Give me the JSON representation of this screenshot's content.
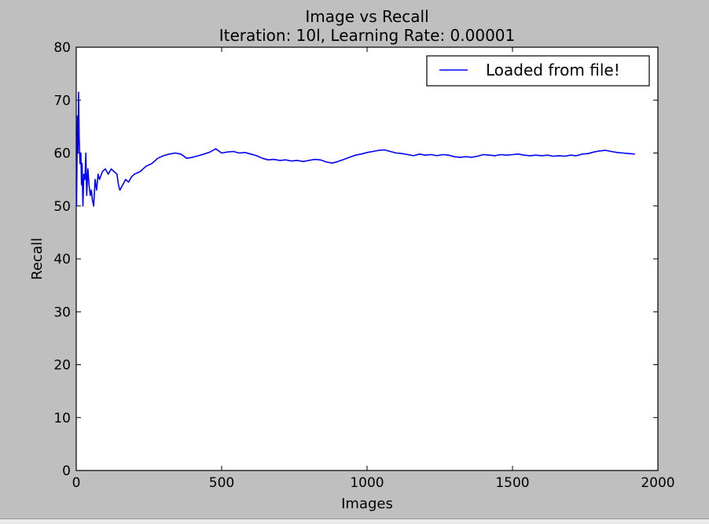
{
  "chart_data": {
    "type": "line",
    "title": "Image vs Recall",
    "subtitle": "Iteration: 10l, Learning Rate: 0.00001",
    "xlabel": "Images",
    "ylabel": "Recall",
    "xlim": [
      0,
      2000
    ],
    "ylim": [
      0,
      80
    ],
    "xticks": [
      0,
      500,
      1000,
      1500,
      2000
    ],
    "yticks": [
      0,
      10,
      20,
      30,
      40,
      50,
      60,
      70,
      80
    ],
    "grid": false,
    "legend_position": "top-right",
    "series": [
      {
        "name": "Loaded from file!",
        "color": "#0000ff",
        "points": [
          [
            1,
            50
          ],
          [
            4,
            67
          ],
          [
            6,
            60
          ],
          [
            8,
            71.5
          ],
          [
            10,
            63
          ],
          [
            13,
            58
          ],
          [
            16,
            60
          ],
          [
            18,
            54
          ],
          [
            20,
            58
          ],
          [
            23,
            50
          ],
          [
            26,
            56
          ],
          [
            30,
            55
          ],
          [
            33,
            60
          ],
          [
            36,
            52
          ],
          [
            40,
            57
          ],
          [
            44,
            54
          ],
          [
            48,
            52
          ],
          [
            52,
            53
          ],
          [
            56,
            51
          ],
          [
            60,
            50
          ],
          [
            65,
            55
          ],
          [
            70,
            53
          ],
          [
            75,
            56
          ],
          [
            80,
            55
          ],
          [
            90,
            56.5
          ],
          [
            100,
            57
          ],
          [
            110,
            56
          ],
          [
            120,
            57
          ],
          [
            130,
            56.5
          ],
          [
            140,
            56
          ],
          [
            145,
            54
          ],
          [
            150,
            53
          ],
          [
            160,
            54
          ],
          [
            170,
            55
          ],
          [
            180,
            54.5
          ],
          [
            190,
            55.5
          ],
          [
            200,
            56
          ],
          [
            220,
            56.5
          ],
          [
            240,
            57.5
          ],
          [
            260,
            58
          ],
          [
            280,
            59
          ],
          [
            300,
            59.5
          ],
          [
            320,
            59.8
          ],
          [
            340,
            60
          ],
          [
            360,
            59.8
          ],
          [
            380,
            59
          ],
          [
            400,
            59.2
          ],
          [
            420,
            59.5
          ],
          [
            440,
            59.8
          ],
          [
            460,
            60.2
          ],
          [
            480,
            60.8
          ],
          [
            500,
            60
          ],
          [
            520,
            60.2
          ],
          [
            540,
            60.3
          ],
          [
            560,
            60
          ],
          [
            580,
            60.1
          ],
          [
            600,
            59.8
          ],
          [
            620,
            59.5
          ],
          [
            640,
            59
          ],
          [
            660,
            58.7
          ],
          [
            680,
            58.8
          ],
          [
            700,
            58.6
          ],
          [
            720,
            58.7
          ],
          [
            740,
            58.5
          ],
          [
            760,
            58.6
          ],
          [
            780,
            58.4
          ],
          [
            800,
            58.6
          ],
          [
            820,
            58.8
          ],
          [
            840,
            58.7
          ],
          [
            860,
            58.3
          ],
          [
            880,
            58.1
          ],
          [
            900,
            58.4
          ],
          [
            920,
            58.8
          ],
          [
            940,
            59.2
          ],
          [
            960,
            59.6
          ],
          [
            980,
            59.8
          ],
          [
            1000,
            60.1
          ],
          [
            1020,
            60.3
          ],
          [
            1040,
            60.5
          ],
          [
            1060,
            60.6
          ],
          [
            1080,
            60.3
          ],
          [
            1100,
            60
          ],
          [
            1120,
            59.9
          ],
          [
            1140,
            59.7
          ],
          [
            1160,
            59.5
          ],
          [
            1180,
            59.8
          ],
          [
            1200,
            59.6
          ],
          [
            1220,
            59.7
          ],
          [
            1240,
            59.5
          ],
          [
            1260,
            59.7
          ],
          [
            1280,
            59.6
          ],
          [
            1300,
            59.3
          ],
          [
            1320,
            59.2
          ],
          [
            1340,
            59.3
          ],
          [
            1360,
            59.2
          ],
          [
            1380,
            59.4
          ],
          [
            1400,
            59.7
          ],
          [
            1420,
            59.6
          ],
          [
            1440,
            59.5
          ],
          [
            1460,
            59.7
          ],
          [
            1480,
            59.6
          ],
          [
            1500,
            59.7
          ],
          [
            1520,
            59.8
          ],
          [
            1540,
            59.6
          ],
          [
            1560,
            59.5
          ],
          [
            1580,
            59.6
          ],
          [
            1600,
            59.5
          ],
          [
            1620,
            59.6
          ],
          [
            1640,
            59.4
          ],
          [
            1660,
            59.5
          ],
          [
            1680,
            59.4
          ],
          [
            1700,
            59.6
          ],
          [
            1720,
            59.5
          ],
          [
            1740,
            59.8
          ],
          [
            1760,
            59.9
          ],
          [
            1780,
            60.2
          ],
          [
            1800,
            60.4
          ],
          [
            1820,
            60.5
          ],
          [
            1840,
            60.3
          ],
          [
            1860,
            60.1
          ],
          [
            1880,
            60
          ],
          [
            1900,
            59.9
          ],
          [
            1920,
            59.8
          ]
        ]
      }
    ]
  }
}
